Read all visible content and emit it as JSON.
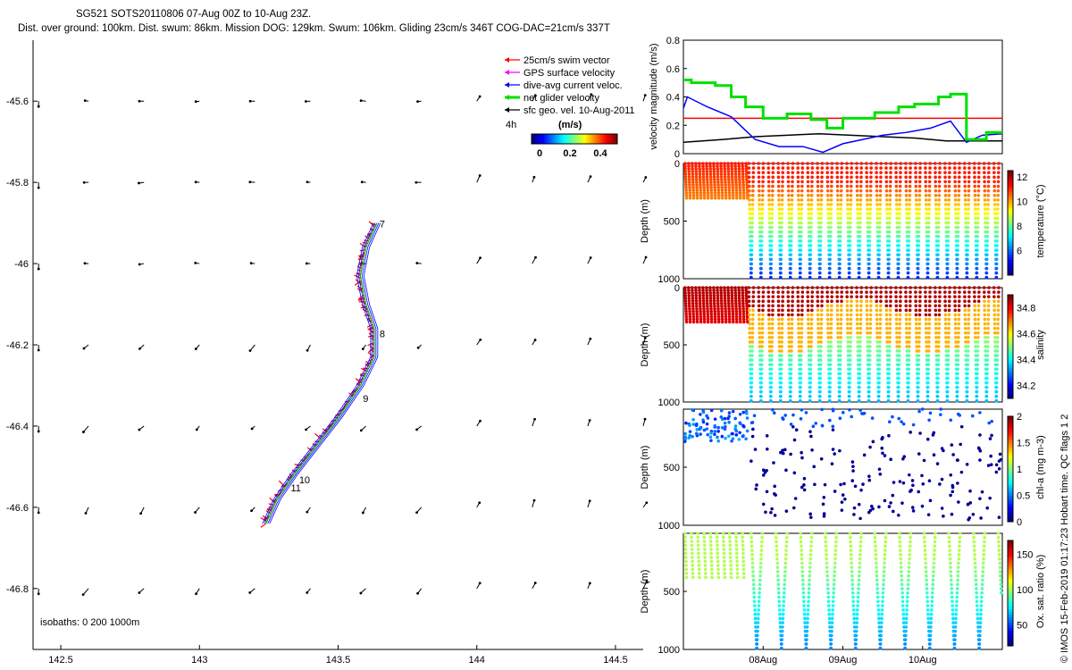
{
  "figure": {
    "title_line1": "SG521 SOTS20110806 07-Aug 00Z to 10-Aug 23Z.",
    "title_line2": "Dist. over ground: 100km. Dist. swum: 86km. Mission DOG: 129km. Swum: 106km. Gliding 23cm/s 346T COG-DAC=21cm/s 337T",
    "side_label": "© IMOS 15-Feb-2019 01:17:23 Hobart time. QC flags 1  2"
  },
  "chart_data": [
    {
      "id": "map",
      "type": "line",
      "xticks": [
        142.5,
        143,
        143.5,
        144,
        144.5
      ],
      "yticks": [
        -45.6,
        -45.8,
        -46,
        -46.2,
        -46.4,
        -46.6,
        -46.8
      ],
      "xlim": [
        142.4,
        144.6
      ],
      "ylim": [
        -46.95,
        -45.45
      ],
      "legend": {
        "placement": "top-right",
        "entries": [
          {
            "label": "25cm/s swim vector",
            "color": "#ff0000"
          },
          {
            "label": "GPS surface velocity",
            "color": "#ff00ff"
          },
          {
            "label": "dive-avg current veloc.",
            "color": "#0000ff"
          },
          {
            "label": "net glider velocity",
            "color": "#00e000"
          },
          {
            "label": "sfc geo. vel. 10-Aug-2011",
            "color": "#000000"
          }
        ],
        "colorbar_text": "4h",
        "colorbar_unit": "(m/s)",
        "colorbar_ticks": [
          "0",
          "0.2",
          "0.4"
        ]
      },
      "isobaths": "isobaths: 0   200   1000m",
      "day_labels": [
        {
          "text": "7",
          "lon": 143.63,
          "lat": -45.92
        },
        {
          "text": "8",
          "lon": 143.63,
          "lat": -46.19
        },
        {
          "text": "9",
          "lon": 143.57,
          "lat": -46.35
        },
        {
          "text": "10",
          "lon": 143.34,
          "lat": -46.55
        },
        {
          "text": "11",
          "lon": 143.31,
          "lat": -46.57
        }
      ],
      "track": [
        [
          143.24,
          -46.64
        ],
        [
          143.28,
          -46.58
        ],
        [
          143.34,
          -46.52
        ],
        [
          143.42,
          -46.45
        ],
        [
          143.5,
          -46.38
        ],
        [
          143.58,
          -46.3
        ],
        [
          143.63,
          -46.23
        ],
        [
          143.63,
          -46.16
        ],
        [
          143.6,
          -46.1
        ],
        [
          143.58,
          -46.03
        ],
        [
          143.6,
          -45.96
        ],
        [
          143.64,
          -45.9
        ]
      ],
      "current_field": {
        "lons": [
          142.42,
          142.6,
          142.8,
          143.0,
          143.2,
          143.4,
          143.6,
          143.8,
          144.0,
          144.2,
          144.4,
          144.6
        ],
        "lats": [
          -45.6,
          -45.8,
          -46.0,
          -46.2,
          -46.4,
          -46.6,
          -46.8
        ],
        "arrows_note": "sfc geo. vel."
      }
    },
    {
      "id": "velocity",
      "type": "line",
      "ylabel": "velocity magnitude (m/s)",
      "ylim": [
        0,
        0.8
      ],
      "yticks": [
        0,
        0.2,
        0.4,
        0.6,
        0.8
      ],
      "time_range_days": [
        7.0,
        11.0
      ],
      "series": [
        {
          "color": "#ff0000",
          "x": [
            7.0,
            11.0
          ],
          "y": [
            0.25,
            0.25
          ]
        },
        {
          "color": "#000000",
          "x": [
            7.0,
            7.5,
            7.9,
            8.3,
            8.7,
            9.1,
            9.5,
            9.9,
            10.3,
            10.7,
            11.0
          ],
          "y": [
            0.08,
            0.1,
            0.12,
            0.13,
            0.14,
            0.13,
            0.12,
            0.11,
            0.09,
            0.09,
            0.09
          ]
        },
        {
          "color": "#0000ff",
          "x": [
            7.0,
            7.05,
            7.3,
            7.6,
            7.75,
            7.9,
            8.2,
            8.5,
            8.75,
            9.0,
            9.5,
            9.8,
            10.1,
            10.35,
            10.55,
            10.75,
            11.0
          ],
          "y": [
            0.32,
            0.4,
            0.33,
            0.26,
            0.18,
            0.1,
            0.05,
            0.05,
            0.01,
            0.07,
            0.13,
            0.15,
            0.18,
            0.23,
            0.08,
            0.13,
            0.14
          ]
        },
        {
          "color": "#00e000",
          "x": [
            7.0,
            7.1,
            7.4,
            7.6,
            7.78,
            8.0,
            8.3,
            8.6,
            8.8,
            9.0,
            9.4,
            9.7,
            9.9,
            10.2,
            10.35,
            10.55,
            10.8,
            11.0
          ],
          "y": [
            0.52,
            0.5,
            0.48,
            0.4,
            0.33,
            0.25,
            0.28,
            0.24,
            0.18,
            0.25,
            0.29,
            0.33,
            0.35,
            0.4,
            0.42,
            0.1,
            0.15,
            0.15
          ]
        }
      ]
    },
    {
      "id": "temperature",
      "type": "scatter",
      "ylabel": "Depth (m)",
      "clabel": "temperature (°C)",
      "ylim": [
        1000,
        0
      ],
      "yticks": [
        0,
        500,
        1000
      ],
      "clim": [
        4,
        12.5
      ],
      "cticks": [
        "6",
        "8",
        "10",
        "12"
      ],
      "shallow_end_day": 7.8,
      "deep_max": 990
    },
    {
      "id": "salinity",
      "type": "scatter",
      "ylabel": "Depth (m)",
      "clabel": "salinity",
      "ylim": [
        1000,
        0
      ],
      "yticks": [
        0,
        500,
        1000
      ],
      "clim": [
        34.1,
        34.9
      ],
      "cticks": [
        "34.2",
        "34.4",
        "34.6",
        "34.8"
      ],
      "shallow_end_day": 7.8,
      "deep_max": 990
    },
    {
      "id": "chla",
      "type": "scatter",
      "ylabel": "Depth (m)",
      "clabel": "chl-a (mg m-3)",
      "ylim": [
        1000,
        0
      ],
      "yticks": [
        500,
        1000
      ],
      "clim": [
        0,
        2
      ],
      "cticks": [
        "0",
        "0.5",
        "1",
        "1.5",
        "2"
      ]
    },
    {
      "id": "oxygen",
      "type": "scatter",
      "ylabel": "Depth (m)",
      "clabel": "Ox. sat. ratio (%)",
      "ylim": [
        1000,
        0
      ],
      "yticks": [
        500,
        1000
      ],
      "clim": [
        20,
        170
      ],
      "cticks": [
        "50",
        "100",
        "150"
      ],
      "xticks": [
        {
          "day": 8,
          "label": "08Aug"
        },
        {
          "day": 9,
          "label": "09Aug"
        },
        {
          "day": 10,
          "label": "10Aug"
        }
      ]
    }
  ]
}
